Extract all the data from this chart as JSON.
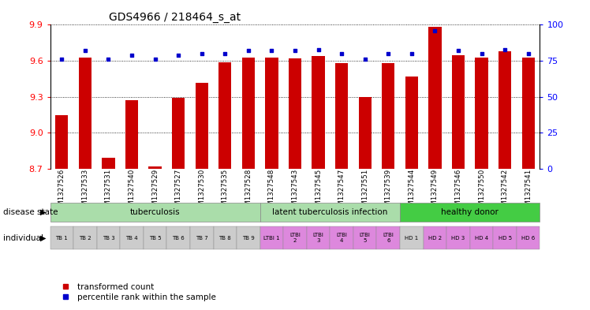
{
  "title": "GDS4966 / 218464_s_at",
  "samples": [
    "GSM1327526",
    "GSM1327533",
    "GSM1327531",
    "GSM1327540",
    "GSM1327529",
    "GSM1327527",
    "GSM1327530",
    "GSM1327535",
    "GSM1327528",
    "GSM1327548",
    "GSM1327543",
    "GSM1327545",
    "GSM1327547",
    "GSM1327551",
    "GSM1327539",
    "GSM1327544",
    "GSM1327549",
    "GSM1327546",
    "GSM1327550",
    "GSM1327542",
    "GSM1327541"
  ],
  "bar_values": [
    9.15,
    9.63,
    8.79,
    9.27,
    8.72,
    9.29,
    9.42,
    9.59,
    9.63,
    9.63,
    9.62,
    9.64,
    9.58,
    9.3,
    9.58,
    9.47,
    9.88,
    9.65,
    9.63,
    9.68,
    9.63
  ],
  "dot_values": [
    76,
    82,
    76,
    79,
    76,
    79,
    80,
    80,
    82,
    82,
    82,
    83,
    80,
    76,
    80,
    80,
    96,
    82,
    80,
    83,
    80
  ],
  "ylim_left": [
    8.7,
    9.9
  ],
  "ylim_right": [
    0,
    100
  ],
  "yticks_left": [
    8.7,
    9.0,
    9.3,
    9.6,
    9.9
  ],
  "yticks_right": [
    0,
    25,
    50,
    75,
    100
  ],
  "bar_color": "#cc0000",
  "dot_color": "#0000cc",
  "groups": [
    {
      "label": "tuberculosis",
      "start": 0,
      "end": 9,
      "color": "#aaddaa"
    },
    {
      "label": "latent tuberculosis infection",
      "start": 9,
      "end": 15,
      "color": "#aaddaa"
    },
    {
      "label": "healthy donor",
      "start": 15,
      "end": 21,
      "color": "#44cc44"
    }
  ],
  "individual_labels": [
    "TB 1",
    "TB 2",
    "TB 3",
    "TB 4",
    "TB 5",
    "TB 6",
    "TB 7",
    "TB 8",
    "TB 9",
    "LTBI 1",
    "LTBI\n2",
    "LTBI\n3",
    "LTBI\n4",
    "LTBI\n5",
    "LTBI\n6",
    "HD 1",
    "HD 2",
    "HD 3",
    "HD 4",
    "HD 5",
    "HD 6"
  ],
  "individual_bg_colors": [
    "#cccccc",
    "#cccccc",
    "#cccccc",
    "#cccccc",
    "#cccccc",
    "#cccccc",
    "#cccccc",
    "#cccccc",
    "#cccccc",
    "#dd88dd",
    "#dd88dd",
    "#dd88dd",
    "#dd88dd",
    "#dd88dd",
    "#dd88dd",
    "#cccccc",
    "#dd88dd",
    "#dd88dd",
    "#dd88dd",
    "#dd88dd",
    "#dd88dd"
  ],
  "legend_labels": [
    "transformed count",
    "percentile rank within the sample"
  ],
  "legend_colors": [
    "#cc0000",
    "#0000cc"
  ]
}
